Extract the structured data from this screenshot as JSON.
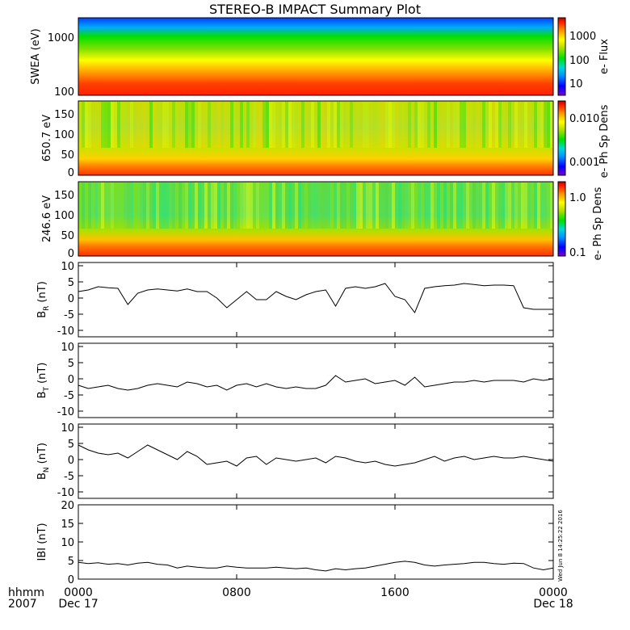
{
  "title": "STEREO-B IMPACT Summary Plot",
  "stamp": "Wed Jun  8 14:25:22 2016",
  "x_axis": {
    "corner_label": "hhmm",
    "year_label": "2007",
    "tick_labels": [
      "0000",
      "0800",
      "1600",
      "0000"
    ],
    "date_labels": [
      "Dec 17",
      "Dec 18"
    ]
  },
  "colors": {
    "spectrogram_scale": [
      "#7a00d0",
      "#0000ff",
      "#0078ff",
      "#00d8d8",
      "#00e000",
      "#b8e000",
      "#ffff00",
      "#ff9000",
      "#ff2000",
      "#c00000"
    ]
  },
  "chart_data": [
    {
      "type": "heatmap",
      "panel": "SWEA",
      "ylabel": "SWEA (eV)",
      "yscale": "log",
      "ylim": [
        100,
        2000
      ],
      "y_tick_labels": [
        "100",
        "1000"
      ],
      "colorbar": {
        "label": "e- Flux",
        "scale": "log",
        "tick_labels": [
          "10",
          "100",
          "1000"
        ]
      },
      "description_values": {
        "color_at_100_eV": "red",
        "color_at_1000_eV": "green",
        "color_at_2000_eV": "blue"
      }
    },
    {
      "type": "heatmap",
      "panel": "pitch angle 650.7 eV",
      "ylabel": "650.7 eV",
      "ylim": [
        0,
        180
      ],
      "y_tick_labels": [
        "0",
        "50",
        "100",
        "150"
      ],
      "colorbar": {
        "label": "e- Ph Sp Dens",
        "scale": "log",
        "tick_labels": [
          "0.001",
          "0.010"
        ]
      }
    },
    {
      "type": "heatmap",
      "panel": "pitch angle 246.6 eV",
      "ylabel": "246.6 eV",
      "ylim": [
        0,
        180
      ],
      "y_tick_labels": [
        "0",
        "50",
        "100",
        "150"
      ],
      "colorbar": {
        "label": "e- Ph Sp Dens",
        "scale": "log",
        "tick_labels": [
          "0.1",
          "1.0"
        ]
      }
    },
    {
      "type": "line",
      "panel": "BR",
      "ylabel_main": "B",
      "ylabel_sub": "R",
      "ylabel_unit": "(nT)",
      "ylim": [
        -12,
        11
      ],
      "y_tick_labels": [
        "-10",
        "-5",
        "0",
        "5",
        "10"
      ],
      "x_hours": [
        0,
        0.5,
        1,
        1.5,
        2,
        2.5,
        3,
        3.5,
        4,
        4.5,
        5,
        5.5,
        6,
        6.5,
        7,
        7.5,
        8,
        8.5,
        9,
        9.5,
        10,
        10.5,
        11,
        11.5,
        12,
        12.5,
        13,
        13.5,
        14,
        14.5,
        15,
        15.5,
        16,
        16.5,
        17,
        17.5,
        18,
        18.5,
        19,
        19.5,
        20,
        20.5,
        21,
        21.5,
        22,
        22.5,
        23,
        23.5,
        24
      ],
      "values": [
        2.0,
        2.5,
        3.5,
        3.2,
        3.0,
        -2.0,
        1.5,
        2.5,
        2.8,
        2.5,
        2.2,
        2.8,
        2.0,
        2.0,
        0.0,
        -3.0,
        -0.5,
        2.0,
        -0.5,
        -0.5,
        2.0,
        0.5,
        -0.5,
        1.0,
        2.0,
        2.5,
        -2.5,
        3.0,
        3.5,
        3.0,
        3.5,
        4.5,
        0.5,
        -0.5,
        -4.5,
        3.0,
        3.5,
        3.8,
        4.0,
        4.5,
        4.2,
        3.8,
        4.0,
        4.0,
        3.8,
        -3.0,
        -3.5,
        -3.5,
        -3.5
      ]
    },
    {
      "type": "line",
      "panel": "BT",
      "ylabel_main": "B",
      "ylabel_sub": "T",
      "ylabel_unit": "(nT)",
      "ylim": [
        -12,
        11
      ],
      "y_tick_labels": [
        "-10",
        "-5",
        "0",
        "5",
        "10"
      ],
      "x_hours": [
        0,
        0.5,
        1,
        1.5,
        2,
        2.5,
        3,
        3.5,
        4,
        4.5,
        5,
        5.5,
        6,
        6.5,
        7,
        7.5,
        8,
        8.5,
        9,
        9.5,
        10,
        10.5,
        11,
        11.5,
        12,
        12.5,
        13,
        13.5,
        14,
        14.5,
        15,
        15.5,
        16,
        16.5,
        17,
        17.5,
        18,
        18.5,
        19,
        19.5,
        20,
        20.5,
        21,
        21.5,
        22,
        22.5,
        23,
        23.5,
        24
      ],
      "values": [
        -2.0,
        -3.0,
        -2.5,
        -2.0,
        -3.0,
        -3.5,
        -3.0,
        -2.0,
        -1.5,
        -2.0,
        -2.5,
        -1.0,
        -1.5,
        -2.5,
        -2.0,
        -3.5,
        -2.0,
        -1.5,
        -2.5,
        -1.5,
        -2.5,
        -3.0,
        -2.5,
        -3.0,
        -3.0,
        -2.0,
        1.0,
        -1.0,
        -0.5,
        0.0,
        -1.5,
        -1.0,
        -0.5,
        -2.0,
        0.5,
        -2.5,
        -2.0,
        -1.5,
        -1.0,
        -1.0,
        -0.5,
        -1.0,
        -0.5,
        -0.5,
        -0.5,
        -1.0,
        0.0,
        -0.5,
        0.0
      ]
    },
    {
      "type": "line",
      "panel": "BN",
      "ylabel_main": "B",
      "ylabel_sub": "N",
      "ylabel_unit": "(nT)",
      "ylim": [
        -12,
        11
      ],
      "y_tick_labels": [
        "-10",
        "-5",
        "0",
        "5",
        "10"
      ],
      "x_hours": [
        0,
        0.5,
        1,
        1.5,
        2,
        2.5,
        3,
        3.5,
        4,
        4.5,
        5,
        5.5,
        6,
        6.5,
        7,
        7.5,
        8,
        8.5,
        9,
        9.5,
        10,
        10.5,
        11,
        11.5,
        12,
        12.5,
        13,
        13.5,
        14,
        14.5,
        15,
        15.5,
        16,
        16.5,
        17,
        17.5,
        18,
        18.5,
        19,
        19.5,
        20,
        20.5,
        21,
        21.5,
        22,
        22.5,
        23,
        23.5,
        24
      ],
      "values": [
        4.5,
        3.0,
        2.0,
        1.5,
        2.0,
        0.5,
        2.5,
        4.5,
        3.0,
        1.5,
        0.0,
        2.5,
        1.0,
        -1.5,
        -1.0,
        -0.5,
        -2.0,
        0.5,
        1.0,
        -1.5,
        0.5,
        0.0,
        -0.5,
        0.0,
        0.5,
        -1.0,
        1.0,
        0.5,
        -0.5,
        -1.0,
        -0.5,
        -1.5,
        -2.0,
        -1.5,
        -1.0,
        0.0,
        1.0,
        -0.5,
        0.5,
        1.0,
        0.0,
        0.5,
        1.0,
        0.5,
        0.5,
        1.0,
        0.5,
        0.0,
        -0.5
      ]
    },
    {
      "type": "line",
      "panel": "|B|",
      "ylabel_main": "IBI (nT)",
      "ylabel_sub": "",
      "ylabel_unit": "",
      "ylim": [
        0,
        20
      ],
      "y_tick_labels": [
        "0",
        "5",
        "10",
        "15",
        "20"
      ],
      "x_hours": [
        0,
        0.5,
        1,
        1.5,
        2,
        2.5,
        3,
        3.5,
        4,
        4.5,
        5,
        5.5,
        6,
        6.5,
        7,
        7.5,
        8,
        8.5,
        9,
        9.5,
        10,
        10.5,
        11,
        11.5,
        12,
        12.5,
        13,
        13.5,
        14,
        14.5,
        15,
        15.5,
        16,
        16.5,
        17,
        17.5,
        18,
        18.5,
        19,
        19.5,
        20,
        20.5,
        21,
        21.5,
        22,
        22.5,
        23,
        23.5,
        24
      ],
      "values": [
        4.5,
        4.2,
        4.4,
        4.0,
        4.2,
        3.8,
        4.3,
        4.5,
        4.0,
        3.8,
        3.0,
        3.5,
        3.2,
        3.0,
        3.0,
        3.5,
        3.2,
        3.0,
        3.0,
        3.0,
        3.2,
        3.0,
        2.8,
        3.0,
        2.5,
        2.2,
        2.8,
        2.5,
        2.8,
        3.0,
        3.5,
        4.0,
        4.5,
        4.8,
        4.5,
        3.8,
        3.5,
        3.8,
        4.0,
        4.2,
        4.5,
        4.5,
        4.2,
        4.0,
        4.3,
        4.2,
        3.0,
        2.5,
        3.0
      ]
    }
  ]
}
